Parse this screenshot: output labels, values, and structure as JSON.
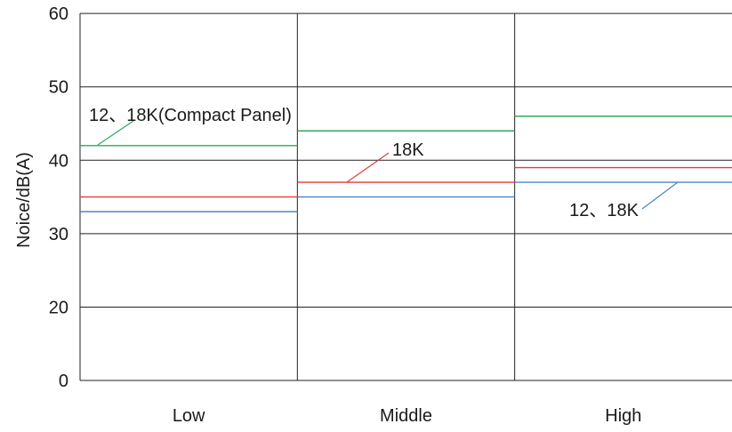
{
  "chart_data": {
    "type": "line",
    "title": "",
    "xlabel": "",
    "ylabel": "Noice/dB(A)",
    "ylim": [
      0,
      60
    ],
    "yticks": [
      {
        "value": 0,
        "label": "0"
      },
      {
        "value": 20,
        "label": "20"
      },
      {
        "value": 30,
        "label": "30"
      },
      {
        "value": 40,
        "label": "40"
      },
      {
        "value": 50,
        "label": "50"
      },
      {
        "value": 60,
        "label": "60"
      }
    ],
    "categories": [
      "Low",
      "Middle",
      "High"
    ],
    "series": [
      {
        "key": "compact",
        "color": "#2eaa5c",
        "values": [
          42,
          44,
          46
        ]
      },
      {
        "key": "red",
        "color": "#e23c3c",
        "values": [
          35,
          37,
          39
        ]
      },
      {
        "key": "blue",
        "color": "#4a86c8",
        "values": [
          33,
          35,
          37
        ]
      }
    ],
    "annotations": [
      {
        "text": "12、18K(Compact Panel)",
        "series": "compact",
        "category": 0
      },
      {
        "text": "18K",
        "series": "red",
        "category": 1
      },
      {
        "text": "12、18K",
        "series": "blue",
        "category": 2
      }
    ],
    "grid": true
  }
}
